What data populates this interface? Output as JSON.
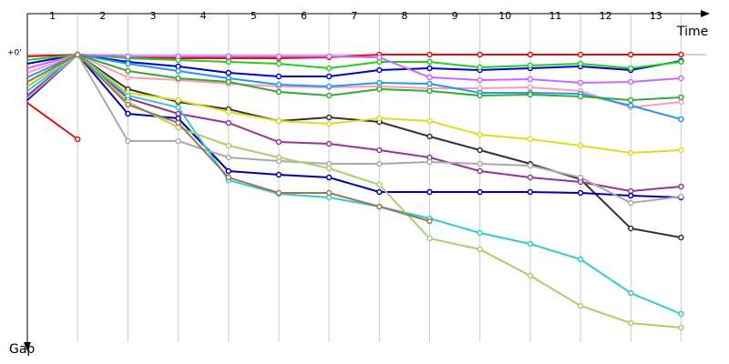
{
  "chart_data": {
    "type": "line",
    "x_label": "Time",
    "y_label": "Gap",
    "x": [
      0,
      1,
      2,
      3,
      4,
      5,
      6,
      7,
      8,
      9,
      10,
      11,
      12,
      13
    ],
    "xlim": [
      0,
      13.5
    ],
    "xticks": [
      {
        "value": 0.5,
        "label": "1"
      },
      {
        "value": 1.5,
        "label": "2"
      },
      {
        "value": 2.5,
        "label": "3"
      },
      {
        "value": 3.5,
        "label": "4"
      },
      {
        "value": 4.5,
        "label": "5"
      },
      {
        "value": 5.5,
        "label": "6"
      },
      {
        "value": 6.5,
        "label": "7"
      },
      {
        "value": 7.5,
        "label": "8"
      },
      {
        "value": 8.5,
        "label": "9"
      },
      {
        "value": 9.5,
        "label": "10"
      },
      {
        "value": 10.5,
        "label": "11"
      },
      {
        "value": 11.5,
        "label": "12"
      },
      {
        "value": 12.5,
        "label": "13"
      }
    ],
    "ylim": [
      0,
      316
    ],
    "yticks": [
      {
        "value": 0,
        "label": "+0'"
      }
    ],
    "series": [
      {
        "color": "#e01010",
        "values": [
          2,
          0,
          3,
          4,
          4,
          4,
          3,
          0,
          0,
          0,
          0,
          0,
          0,
          0
        ]
      },
      {
        "color": "#e01010",
        "values": [
          53,
          93,
          null,
          null,
          null,
          null,
          null,
          null,
          null,
          null,
          null,
          null,
          null,
          null
        ]
      },
      {
        "color": "#0000cc",
        "values": [
          10,
          0,
          8,
          13,
          20,
          24,
          24,
          17,
          15,
          17,
          15,
          13,
          17,
          7
        ]
      },
      {
        "color": "#22cc22",
        "values": [
          6,
          0,
          4,
          6,
          8,
          10,
          15,
          8,
          8,
          14,
          12,
          10,
          15,
          8
        ]
      },
      {
        "color": "#cc66ff",
        "values": [
          15,
          0,
          2,
          2,
          2,
          2,
          2,
          3,
          25,
          28,
          27,
          31,
          30,
          26
        ]
      },
      {
        "color": "#ff99bb",
        "values": [
          20,
          0,
          25,
          28,
          32,
          35,
          36,
          35,
          37,
          37,
          36,
          40,
          58,
          52
        ]
      },
      {
        "color": "#2299ee",
        "values": [
          25,
          0,
          10,
          18,
          26,
          33,
          35,
          31,
          32,
          42,
          42,
          43,
          56,
          71
        ]
      },
      {
        "color": "#33aa33",
        "values": [
          30,
          0,
          18,
          26,
          30,
          41,
          45,
          38,
          40,
          45,
          44,
          46,
          50,
          47
        ]
      },
      {
        "color": "#333333",
        "values": [
          35,
          0,
          38,
          52,
          60,
          73,
          69,
          74,
          90,
          105,
          120,
          137,
          191,
          201
        ]
      },
      {
        "color": "#dddd22",
        "values": [
          40,
          0,
          42,
          50,
          63,
          73,
          76,
          70,
          73,
          88,
          93,
          100,
          108,
          105
        ]
      },
      {
        "color": "#993399",
        "values": [
          45,
          0,
          48,
          65,
          75,
          96,
          98,
          105,
          113,
          128,
          135,
          140,
          150,
          145
        ]
      },
      {
        "color": "#0000aa",
        "values": [
          50,
          0,
          65,
          70,
          128,
          132,
          135,
          151,
          151,
          151,
          151,
          152,
          155,
          157
        ]
      },
      {
        "color": "#aaaaaa",
        "values": [
          48,
          0,
          95,
          95,
          113,
          117,
          120,
          120,
          118,
          120,
          122,
          135,
          163,
          156
        ]
      },
      {
        "color": "#33cccc",
        "values": [
          40,
          0,
          45,
          58,
          138,
          153,
          157,
          167,
          180,
          196,
          208,
          225,
          262,
          285
        ]
      },
      {
        "color": "#aad066",
        "values": [
          35,
          0,
          52,
          80,
          100,
          113,
          125,
          143,
          202,
          214,
          243,
          276,
          295,
          300
        ]
      },
      {
        "color": "#997755",
        "values": [
          30,
          0,
          55,
          75,
          135,
          152,
          152,
          167,
          183,
          null,
          null,
          null,
          null,
          null
        ]
      }
    ]
  }
}
